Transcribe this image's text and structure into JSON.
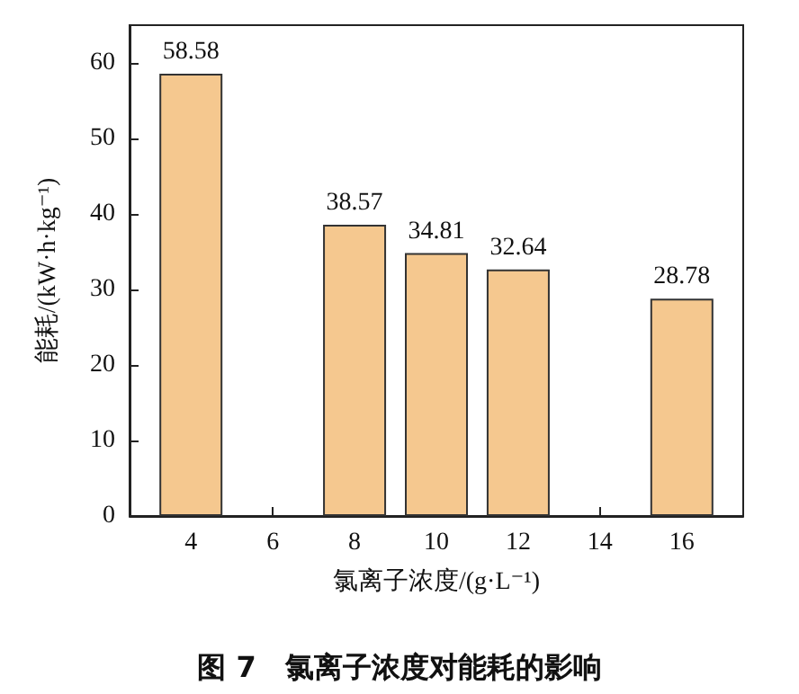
{
  "chart_data": {
    "type": "bar",
    "title": "图 7　氯离子浓度对能耗的影响",
    "xlabel": "氯离子浓度/(g·L⁻¹)",
    "ylabel": "能耗/(kW·h·kg⁻¹)",
    "x": [
      4,
      8,
      10,
      12,
      16
    ],
    "values": [
      58.58,
      38.57,
      34.81,
      32.64,
      28.78
    ],
    "color": "#f5c88f",
    "xlim": [
      2.5,
      17.5
    ],
    "xticks": [
      4,
      6,
      8,
      10,
      12,
      14,
      16
    ],
    "ylim": [
      0,
      65
    ],
    "yticks": [
      0,
      10,
      20,
      30,
      40,
      50,
      60
    ],
    "data_labels": true
  }
}
